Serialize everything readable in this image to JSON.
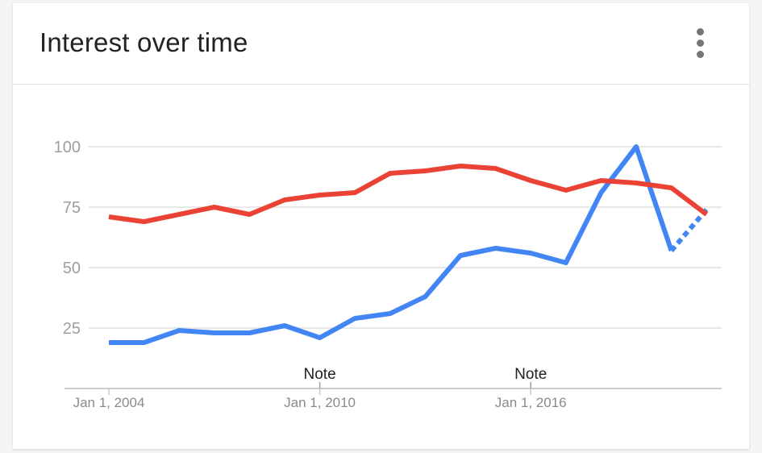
{
  "card": {
    "title": "Interest over time",
    "menu_icon": "more-vert-icon"
  },
  "chart_data": {
    "type": "line",
    "ylim": [
      0,
      100
    ],
    "yticks": [
      25,
      50,
      75,
      100
    ],
    "xticks": [
      "Jan 1, 2004",
      "Jan 1, 2010",
      "Jan 1, 2016"
    ],
    "xlim": [
      2004,
      2021.1
    ],
    "grid": true,
    "annotations": [
      {
        "label": "Note",
        "x": 2010
      },
      {
        "label": "Note",
        "x": 2016
      }
    ],
    "x": [
      2004,
      2005,
      2006,
      2007,
      2008,
      2009,
      2010,
      2011,
      2012,
      2013,
      2014,
      2015,
      2016,
      2017,
      2018,
      2019,
      2020,
      2021
    ],
    "series": [
      {
        "color": "#4285f4",
        "values": [
          19,
          19,
          24,
          23,
          23,
          26,
          21,
          29,
          31,
          38,
          55,
          58,
          56,
          52,
          81,
          100,
          57,
          74
        ],
        "partial_from_index": 16
      },
      {
        "color": "#ea4335",
        "values": [
          71,
          69,
          72,
          75,
          72,
          78,
          80,
          81,
          89,
          90,
          92,
          91,
          86,
          82,
          86,
          85,
          83,
          72
        ],
        "partial_from_index": null
      }
    ],
    "colors": {
      "grid": "#e0e0e0",
      "axis": "#cccccc",
      "tick_text": "#9e9e9e",
      "annotation_text": "#212121"
    }
  }
}
